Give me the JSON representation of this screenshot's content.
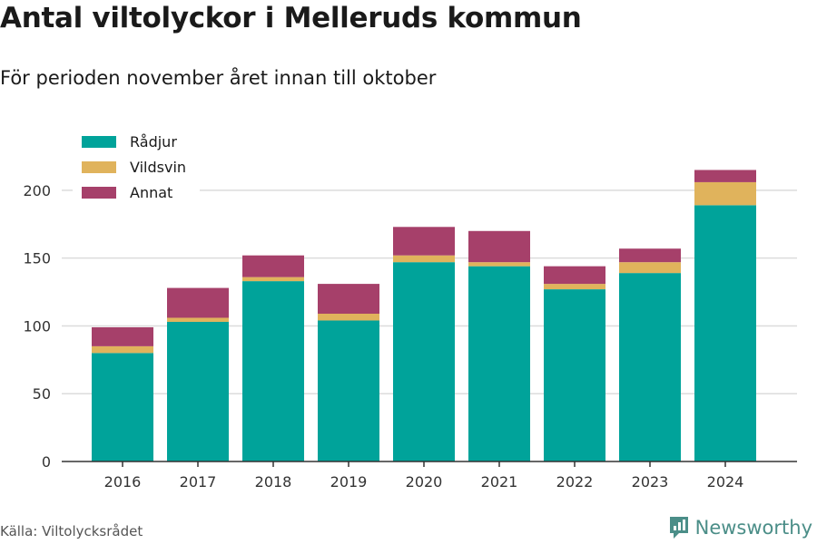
{
  "title": "Antal viltolyckor i Melleruds kommun",
  "subtitle": "För perioden november året innan till oktober",
  "source": "Källa: Viltolycksrådet",
  "brand": {
    "name": "Newsworthy",
    "icon": "newsworthy-logo-icon",
    "color": "#4b8e88"
  },
  "chart_data": {
    "type": "bar",
    "stacked": true,
    "categories": [
      "2016",
      "2017",
      "2018",
      "2019",
      "2020",
      "2021",
      "2022",
      "2023",
      "2024"
    ],
    "series": [
      {
        "name": "Rådjur",
        "color": "#00a39a",
        "values": [
          80,
          103,
          133,
          104,
          147,
          144,
          127,
          139,
          189
        ]
      },
      {
        "name": "Vildsvin",
        "color": "#e0b35c",
        "values": [
          5,
          3,
          3,
          5,
          5,
          3,
          4,
          8,
          17
        ]
      },
      {
        "name": "Annat",
        "color": "#a6406a",
        "values": [
          14,
          22,
          16,
          22,
          21,
          23,
          13,
          10,
          9
        ]
      }
    ],
    "ylim": [
      0,
      220
    ],
    "yticks": [
      0,
      50,
      100,
      150,
      200
    ],
    "grid": true,
    "legend_position": "top-left",
    "xlabel": "",
    "ylabel": ""
  }
}
